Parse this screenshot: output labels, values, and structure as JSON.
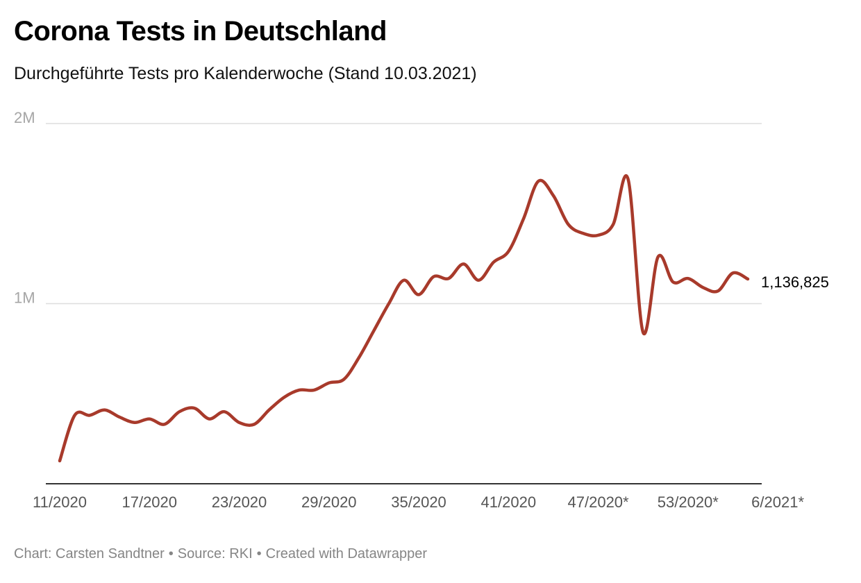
{
  "chart_data": {
    "type": "line",
    "title": "Corona Tests in Deutschland",
    "subtitle": "Durchgeführte Tests pro Kalenderwoche (Stand 10.03.2021)",
    "xlabel": "",
    "ylabel": "",
    "ylim": [
      0,
      2000000
    ],
    "y_ticks": [
      {
        "value": 1000000,
        "label": "1M"
      },
      {
        "value": 2000000,
        "label": "2M"
      }
    ],
    "x_ticks": [
      {
        "index": 0,
        "label": "11/2020"
      },
      {
        "index": 6,
        "label": "17/2020"
      },
      {
        "index": 12,
        "label": "23/2020"
      },
      {
        "index": 18,
        "label": "29/2020"
      },
      {
        "index": 24,
        "label": "35/2020"
      },
      {
        "index": 30,
        "label": "41/2020"
      },
      {
        "index": 36,
        "label": "47/2020*"
      },
      {
        "index": 42,
        "label": "53/2020*"
      },
      {
        "index": 48,
        "label": "6/2021*"
      }
    ],
    "grid": true,
    "series": [
      {
        "color": "#a83a2b",
        "values": [
          127000,
          380000,
          380000,
          410000,
          370000,
          340000,
          360000,
          330000,
          400000,
          420000,
          360000,
          400000,
          340000,
          330000,
          410000,
          480000,
          520000,
          520000,
          560000,
          580000,
          700000,
          850000,
          1000000,
          1130000,
          1050000,
          1150000,
          1140000,
          1220000,
          1130000,
          1230000,
          1290000,
          1470000,
          1680000,
          1600000,
          1440000,
          1390000,
          1380000,
          1440000,
          1690000,
          840000,
          1260000,
          1120000,
          1140000,
          1090000,
          1070000,
          1170000,
          1136825
        ],
        "end_label": "1,136,825"
      }
    ]
  },
  "footer": {
    "credit": "Chart: Carsten Sandtner",
    "source": "Source: RKI",
    "tool": "Created with Datawrapper",
    "separator": "•"
  }
}
